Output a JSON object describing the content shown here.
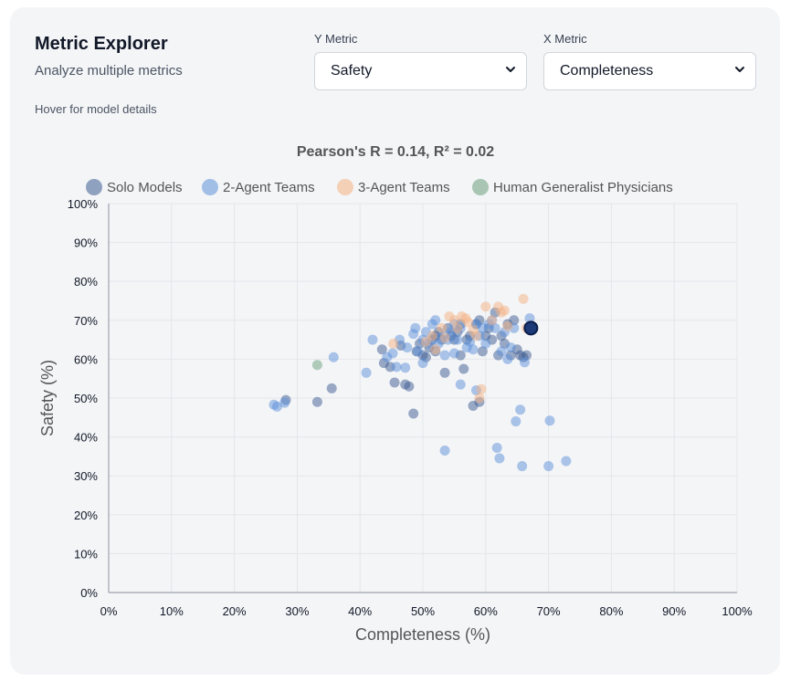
{
  "header": {
    "title": "Metric Explorer",
    "subtitle": "Analyze multiple metrics",
    "hint": "Hover for model details"
  },
  "controls": {
    "y_metric_label": "Y Metric",
    "y_metric_value": "Safety",
    "x_metric_label": "X Metric",
    "x_metric_value": "Completeness"
  },
  "chart_data": {
    "type": "scatter",
    "title": "Pearson's R = 0.14, R² = 0.02",
    "xlabel": "Completeness (%)",
    "ylabel": "Safety (%)",
    "xlim": [
      0,
      100
    ],
    "ylim": [
      0,
      100
    ],
    "xticks": [
      "0%",
      "10%",
      "20%",
      "30%",
      "40%",
      "50%",
      "60%",
      "70%",
      "80%",
      "90%",
      "100%"
    ],
    "yticks": [
      "0%",
      "10%",
      "20%",
      "30%",
      "40%",
      "50%",
      "60%",
      "70%",
      "80%",
      "90%",
      "100%"
    ],
    "grid": true,
    "legend_position": "top",
    "series": [
      {
        "name": "Solo Models",
        "color": "#3b5b92",
        "points": [
          [
            28.2,
            49.5
          ],
          [
            33.2,
            49
          ],
          [
            35.5,
            52.5
          ],
          [
            43.5,
            62.5
          ],
          [
            43.8,
            59
          ],
          [
            44.8,
            58
          ],
          [
            45.5,
            54
          ],
          [
            46.5,
            63.5
          ],
          [
            47.2,
            53.5
          ],
          [
            47.8,
            53
          ],
          [
            48.5,
            46
          ],
          [
            49,
            62
          ],
          [
            49.5,
            64
          ],
          [
            50,
            61
          ],
          [
            50.5,
            60.5
          ],
          [
            51,
            63
          ],
          [
            51.5,
            65
          ],
          [
            52,
            66
          ],
          [
            52,
            62
          ],
          [
            52.5,
            67
          ],
          [
            53,
            65
          ],
          [
            53.5,
            56.5
          ],
          [
            54,
            68
          ],
          [
            54.5,
            66
          ],
          [
            55,
            65
          ],
          [
            55.5,
            67
          ],
          [
            56,
            69
          ],
          [
            56.5,
            57.5
          ],
          [
            56,
            61
          ],
          [
            57,
            65
          ],
          [
            57.5,
            66
          ],
          [
            58,
            48
          ],
          [
            58.5,
            69
          ],
          [
            59,
            70
          ],
          [
            59,
            49
          ],
          [
            59.5,
            62
          ],
          [
            60,
            66
          ],
          [
            60.5,
            68
          ],
          [
            61,
            65
          ],
          [
            61.5,
            72
          ],
          [
            62,
            61
          ],
          [
            62.5,
            66
          ],
          [
            63,
            64
          ],
          [
            63.5,
            69
          ],
          [
            64,
            61
          ],
          [
            64.5,
            70
          ],
          [
            65,
            62.5
          ],
          [
            65.5,
            61
          ],
          [
            66,
            60.5
          ],
          [
            66.5,
            61
          ]
        ]
      },
      {
        "name": "2-Agent Teams",
        "color": "#5b8fd9",
        "points": [
          [
            26.3,
            48.3
          ],
          [
            26.8,
            47.8
          ],
          [
            28,
            48.8
          ],
          [
            35.8,
            60.5
          ],
          [
            41,
            56.5
          ],
          [
            42,
            65
          ],
          [
            44.3,
            60.5
          ],
          [
            45.2,
            61.5
          ],
          [
            45.8,
            58
          ],
          [
            46.3,
            65
          ],
          [
            47.2,
            57.8
          ],
          [
            47.5,
            63
          ],
          [
            48.5,
            66.5
          ],
          [
            48.8,
            68
          ],
          [
            49.2,
            62
          ],
          [
            50,
            59
          ],
          [
            50,
            65
          ],
          [
            50.5,
            67
          ],
          [
            51,
            64
          ],
          [
            51.5,
            69
          ],
          [
            52,
            70
          ],
          [
            52.5,
            64
          ],
          [
            53,
            66
          ],
          [
            53.5,
            36.5
          ],
          [
            53.5,
            61
          ],
          [
            54,
            65
          ],
          [
            54.5,
            67
          ],
          [
            55,
            61.5
          ],
          [
            55,
            69
          ],
          [
            55.5,
            65
          ],
          [
            56,
            53.5
          ],
          [
            56,
            68
          ],
          [
            57,
            63
          ],
          [
            57.5,
            64.5
          ],
          [
            58,
            62.5
          ],
          [
            58.5,
            69
          ],
          [
            58.5,
            52
          ],
          [
            59,
            66
          ],
          [
            59.5,
            68
          ],
          [
            60,
            64
          ],
          [
            60.5,
            69
          ],
          [
            61,
            70
          ],
          [
            61.5,
            68
          ],
          [
            61.8,
            37.2
          ],
          [
            62.2,
            34.5
          ],
          [
            62.5,
            62
          ],
          [
            63,
            67
          ],
          [
            63.5,
            60
          ],
          [
            64,
            63
          ],
          [
            64.5,
            68
          ],
          [
            64.8,
            44
          ],
          [
            65.5,
            47
          ],
          [
            65.8,
            32.5
          ],
          [
            66.2,
            59.2
          ],
          [
            67,
            70.5
          ],
          [
            70,
            32.5
          ],
          [
            70.2,
            44.2
          ],
          [
            72.8,
            33.8
          ]
        ]
      },
      {
        "name": "3-Agent Teams",
        "color": "#f4b183",
        "points": [
          [
            45.3,
            64
          ],
          [
            50.5,
            64.5
          ],
          [
            51.5,
            66
          ],
          [
            52,
            62.5
          ],
          [
            53,
            68
          ],
          [
            53.5,
            65.5
          ],
          [
            54.2,
            71
          ],
          [
            55,
            70
          ],
          [
            55.5,
            68
          ],
          [
            56.2,
            71
          ],
          [
            56.8,
            70.5
          ],
          [
            57.2,
            69.5
          ],
          [
            58,
            67.5
          ],
          [
            58.5,
            66
          ],
          [
            59,
            50
          ],
          [
            59.3,
            52.3
          ],
          [
            60,
            73.5
          ],
          [
            61,
            70
          ],
          [
            62,
            73.5
          ],
          [
            62.5,
            72
          ],
          [
            63,
            72.5
          ],
          [
            63.5,
            68.5
          ],
          [
            66,
            75.5
          ],
          [
            66.5,
            68
          ]
        ]
      },
      {
        "name": "Human Generalist Physicians",
        "color": "#6a9f7c",
        "points": [
          [
            33.2,
            58.5
          ]
        ]
      }
    ],
    "highlight": {
      "series": "Solo Models",
      "x": 67.2,
      "y": 68,
      "color": "#1c3a78"
    }
  }
}
